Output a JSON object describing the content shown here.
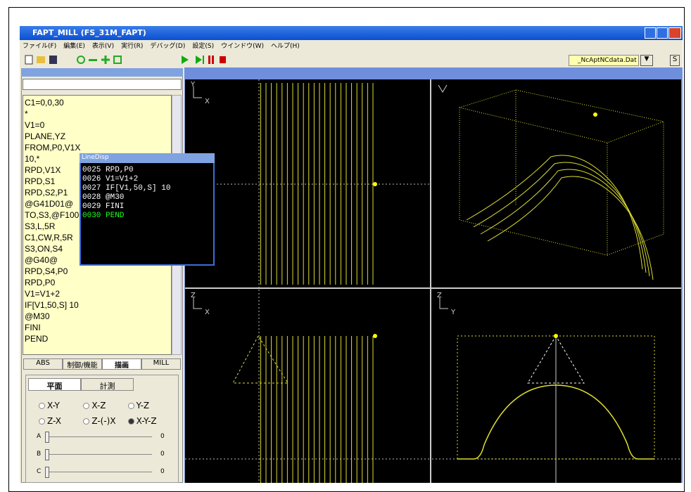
{
  "window": {
    "title": "FAPT_MILL (FS_31M_FAPT)"
  },
  "menu": [
    "ファイル(F)",
    "編集(E)",
    "表示(V)",
    "実行(R)",
    "デバッグ(D)",
    "設定(S)",
    "ウインドウ(W)",
    "ヘルプ(H)"
  ],
  "toolbar": {
    "file": "_NcAptNCdata.Dat",
    "button": "S"
  },
  "editor": {
    "lines": [
      "C1=0,0,30",
      "*",
      "V1=0",
      "PLANE,YZ",
      "FROM,P0,V1X",
      "10,*",
      "RPD,V1X",
      "RPD,S1",
      "RPD,S2,P1",
      "@G41D01@",
      "TO,S3,@F100",
      "S3,L,5R",
      "C1,CW,R,5R",
      "S3,ON,S4",
      "@G40@",
      "RPD,S4,P0",
      "RPD,P0",
      "V1=V1+2",
      "IF[V1,50,S] 10",
      "@M30",
      "FINI",
      "PEND"
    ]
  },
  "tabs": [
    "ABS",
    "制御/機能",
    "描画",
    "MILL"
  ],
  "subtabs": [
    "平面",
    "計測"
  ],
  "planes": [
    "X-Y",
    "X-Z",
    "Y-Z",
    "Z-X",
    "Z-(-)X",
    "X-Y-Z"
  ],
  "sliders": [
    {
      "label": "A",
      "value": 0
    },
    {
      "label": "B",
      "value": 0
    },
    {
      "label": "C",
      "value": 0
    }
  ],
  "popup": {
    "title": "LineDisp",
    "lines": [
      "0025 RPD,P0",
      "0026 V1=V1+2",
      "0027 IF[V1,50,S] 10",
      "0028 @M30",
      "0029 FINI",
      "0030 PEND"
    ]
  },
  "viewports": [
    {
      "v": "Y",
      "h": "X"
    },
    {
      "v": "Z",
      "h": "X"
    },
    {
      "v": "Z",
      "h": "Y"
    }
  ]
}
